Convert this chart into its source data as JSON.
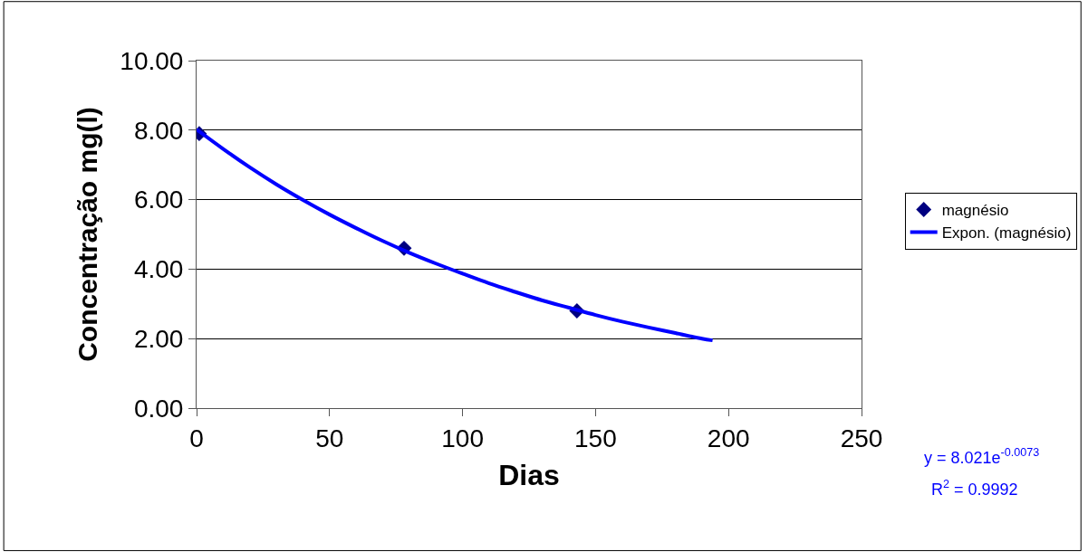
{
  "chart_data": {
    "type": "scatter",
    "xlabel": "Dias",
    "ylabel": "Concentração mg(l)",
    "xlim": [
      0,
      250
    ],
    "xticks": [
      0,
      50,
      100,
      150,
      200,
      250
    ],
    "ylim": [
      0,
      10
    ],
    "yticks": [
      {
        "value": 0,
        "label": "0.00"
      },
      {
        "value": 2,
        "label": "2.00"
      },
      {
        "value": 4,
        "label": "4.00"
      },
      {
        "value": 6,
        "label": "6.00"
      },
      {
        "value": 8,
        "label": "8.00"
      },
      {
        "value": 10,
        "label": "10.00"
      }
    ],
    "grid": "y",
    "legend": "right",
    "marker": "diamond",
    "series": [
      {
        "name": "magnésio",
        "color": "#000080",
        "x": [
          1,
          78,
          143
        ],
        "values": [
          7.9,
          4.6,
          2.8
        ]
      },
      {
        "name": "Expon. (magnésio)",
        "type": "line",
        "color": "#0000ff",
        "marker": "none",
        "line_style": "solid",
        "x": [
          0,
          10,
          20,
          30,
          40,
          50,
          60,
          70,
          80,
          90,
          100,
          110,
          120,
          130,
          140,
          150,
          160,
          170,
          180,
          190,
          194
        ],
        "values": [
          8.02,
          7.46,
          6.93,
          6.44,
          5.99,
          5.57,
          5.18,
          4.81,
          4.47,
          4.16,
          3.87,
          3.59,
          3.34,
          3.1,
          2.89,
          2.68,
          2.49,
          2.32,
          2.16,
          2.0,
          1.95
        ]
      }
    ],
    "annotations": [
      "y = 8.021e$^{-0.0073}$",
      "R$^{2}$ = 0.9992"
    ]
  }
}
